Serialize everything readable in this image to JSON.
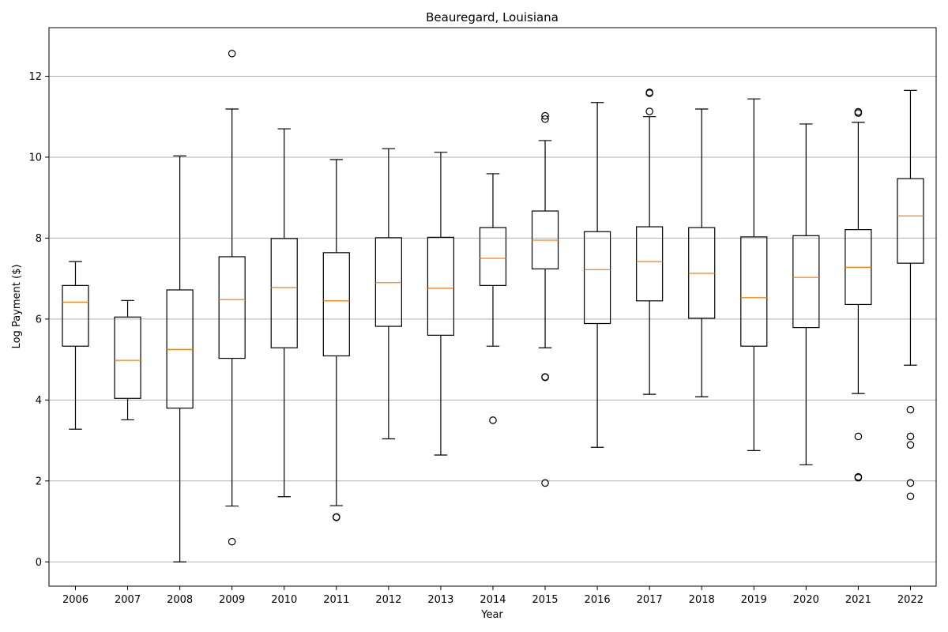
{
  "chart_data": {
    "type": "box",
    "title": "Beauregard, Louisiana",
    "xlabel": "Year",
    "ylabel": "Log Payment ($)",
    "ylim": [
      -0.6,
      13.2
    ],
    "yticks": [
      0,
      2,
      4,
      6,
      8,
      10,
      12
    ],
    "grid": "y",
    "colors": {
      "box": "#000000",
      "median": "#ff7f0e",
      "grid": "#b0b0b0"
    },
    "categories": [
      "2006",
      "2007",
      "2008",
      "2009",
      "2010",
      "2011",
      "2012",
      "2013",
      "2014",
      "2015",
      "2016",
      "2017",
      "2018",
      "2019",
      "2020",
      "2021",
      "2022"
    ],
    "boxes": [
      {
        "year": "2006",
        "whisker_low": 3.28,
        "q1": 5.33,
        "median": 6.42,
        "q3": 6.83,
        "whisker_high": 7.42,
        "outliers": []
      },
      {
        "year": "2007",
        "whisker_low": 3.51,
        "q1": 4.04,
        "median": 4.98,
        "q3": 6.05,
        "whisker_high": 6.46,
        "outliers": []
      },
      {
        "year": "2008",
        "whisker_low": 0.0,
        "q1": 3.8,
        "median": 5.25,
        "q3": 6.72,
        "whisker_high": 10.03,
        "outliers": []
      },
      {
        "year": "2009",
        "whisker_low": 1.38,
        "q1": 5.03,
        "median": 6.48,
        "q3": 7.54,
        "whisker_high": 11.19,
        "outliers": [
          0.5,
          12.56
        ]
      },
      {
        "year": "2010",
        "whisker_low": 1.61,
        "q1": 5.29,
        "median": 6.78,
        "q3": 7.99,
        "whisker_high": 10.7,
        "outliers": []
      },
      {
        "year": "2011",
        "whisker_low": 1.39,
        "q1": 5.09,
        "median": 6.45,
        "q3": 7.64,
        "whisker_high": 9.94,
        "outliers": [
          1.1,
          1.11
        ]
      },
      {
        "year": "2012",
        "whisker_low": 3.04,
        "q1": 5.82,
        "median": 6.9,
        "q3": 8.01,
        "whisker_high": 10.21,
        "outliers": []
      },
      {
        "year": "2013",
        "whisker_low": 2.64,
        "q1": 5.6,
        "median": 6.76,
        "q3": 8.02,
        "whisker_high": 10.12,
        "outliers": []
      },
      {
        "year": "2014",
        "whisker_low": 5.33,
        "q1": 6.83,
        "median": 7.5,
        "q3": 8.26,
        "whisker_high": 9.59,
        "outliers": [
          3.5
        ]
      },
      {
        "year": "2015",
        "whisker_low": 5.29,
        "q1": 7.24,
        "median": 7.95,
        "q3": 8.67,
        "whisker_high": 10.41,
        "outliers": [
          1.95,
          4.56,
          4.57,
          10.94,
          11.02
        ]
      },
      {
        "year": "2016",
        "whisker_low": 2.83,
        "q1": 5.89,
        "median": 7.22,
        "q3": 8.16,
        "whisker_high": 11.35,
        "outliers": []
      },
      {
        "year": "2017",
        "whisker_low": 4.14,
        "q1": 6.45,
        "median": 7.42,
        "q3": 8.28,
        "whisker_high": 11.0,
        "outliers": [
          11.13,
          11.58,
          11.6
        ]
      },
      {
        "year": "2018",
        "whisker_low": 4.08,
        "q1": 6.02,
        "median": 7.13,
        "q3": 8.26,
        "whisker_high": 11.19,
        "outliers": []
      },
      {
        "year": "2019",
        "whisker_low": 2.75,
        "q1": 5.33,
        "median": 6.53,
        "q3": 8.03,
        "whisker_high": 11.44,
        "outliers": []
      },
      {
        "year": "2020",
        "whisker_low": 2.4,
        "q1": 5.79,
        "median": 7.03,
        "q3": 8.06,
        "whisker_high": 10.82,
        "outliers": []
      },
      {
        "year": "2021",
        "whisker_low": 4.16,
        "q1": 6.36,
        "median": 7.28,
        "q3": 8.21,
        "whisker_high": 10.86,
        "outliers": [
          2.08,
          2.1,
          3.1,
          11.09,
          11.12
        ]
      },
      {
        "year": "2022",
        "whisker_low": 4.86,
        "q1": 7.38,
        "median": 8.55,
        "q3": 9.47,
        "whisker_high": 11.65,
        "outliers": [
          1.62,
          1.95,
          2.89,
          3.1,
          3.76
        ]
      }
    ]
  }
}
